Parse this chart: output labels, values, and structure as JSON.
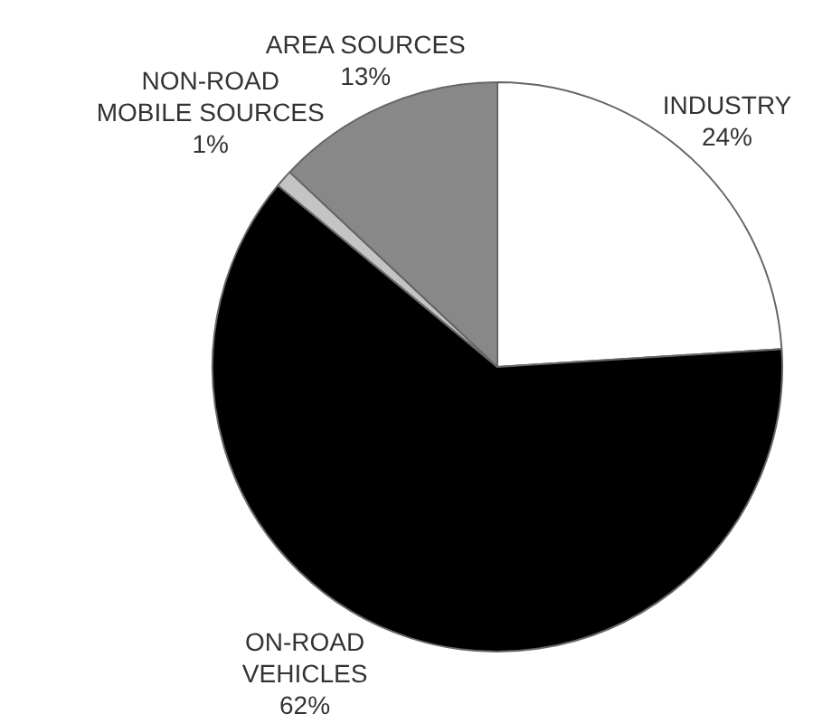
{
  "chart_data": {
    "type": "pie",
    "categories": [
      "INDUSTRY",
      "ON-ROAD VEHICLES",
      "NON-ROAD MOBILE SOURCES",
      "AREA SOURCES"
    ],
    "values": [
      24,
      62,
      1,
      13
    ],
    "colors": [
      "#ffffff",
      "#000000",
      "#c4c4c4",
      "#888888"
    ],
    "value_labels": [
      "24%",
      "62%",
      "1%",
      "13%"
    ],
    "legend": false
  }
}
